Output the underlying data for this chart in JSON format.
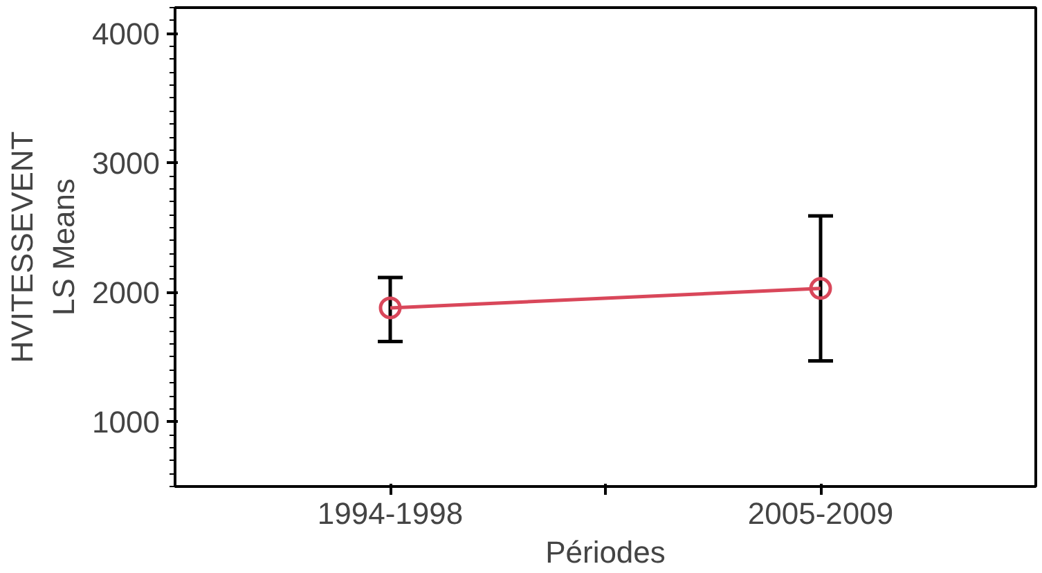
{
  "chart_data": {
    "type": "line",
    "xlabel": "Périodes",
    "ylabel": "HVITESSEVENT\nLS Means",
    "categories": [
      "1994-1998",
      "2005-2009"
    ],
    "series": [
      {
        "color": "#d9475a",
        "values": [
          1880,
          2030
        ],
        "errors": [
          [
            1620,
            2115
          ],
          [
            1470,
            2590
          ]
        ]
      }
    ],
    "ylim": [
      500,
      4200
    ],
    "yticks": [
      1000,
      2000,
      3000,
      4000
    ],
    "grid": false,
    "marker": "circle",
    "line_style": "solid"
  }
}
